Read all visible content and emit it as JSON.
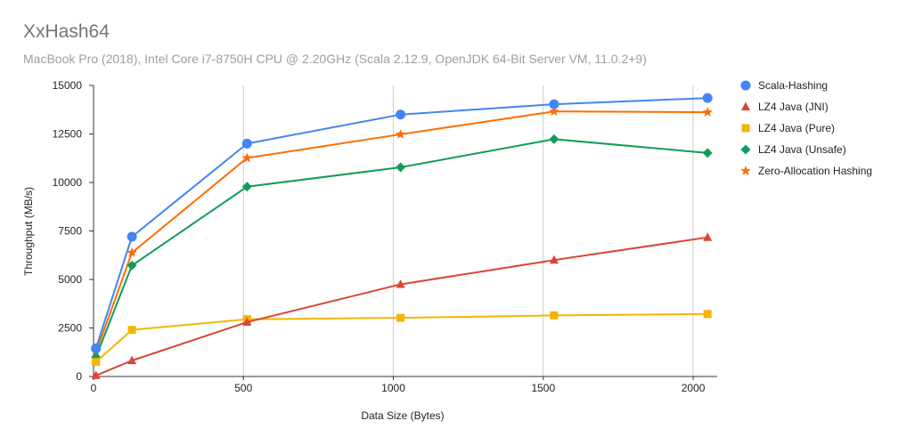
{
  "chart_data": {
    "type": "line",
    "title": "XxHash64",
    "subtitle": "MacBook Pro (2018), Intel Core i7-8750H CPU @ 2.20GHz (Scala 2.12.9, OpenJDK 64-Bit Server VM, 11.0.2+9)",
    "xlabel": "Data Size (Bytes)",
    "ylabel": "Throughput (MB/s)",
    "xlim": [
      0,
      2080
    ],
    "ylim": [
      0,
      15000
    ],
    "xticks": [
      0,
      500,
      1000,
      1500,
      2000
    ],
    "yticks": [
      0,
      2500,
      5000,
      7500,
      10000,
      12500,
      15000
    ],
    "grid": "vertical",
    "legend_position": "right",
    "x": [
      8,
      128,
      512,
      1024,
      1536,
      2048
    ],
    "series": [
      {
        "name": "Scala-Hashing",
        "color": "#4285f4",
        "marker": "circle",
        "values": [
          1450,
          7200,
          12000,
          13500,
          14030,
          14350
        ]
      },
      {
        "name": "LZ4 Java (JNI)",
        "color": "#db4437",
        "marker": "triangle",
        "values": [
          50,
          820,
          2800,
          4750,
          6000,
          7170
        ]
      },
      {
        "name": "LZ4 Java (Pure)",
        "color": "#f4b400",
        "marker": "square",
        "values": [
          750,
          2400,
          2950,
          3020,
          3150,
          3220
        ]
      },
      {
        "name": "LZ4 Java (Unsafe)",
        "color": "#0f9d58",
        "marker": "diamond",
        "values": [
          1000,
          5720,
          9780,
          10780,
          12230,
          11520
        ]
      },
      {
        "name": "Zero-Allocation Hashing",
        "color": "#ff6d01",
        "marker": "star",
        "values": [
          1250,
          6380,
          11260,
          12480,
          13660,
          13620
        ]
      }
    ]
  }
}
